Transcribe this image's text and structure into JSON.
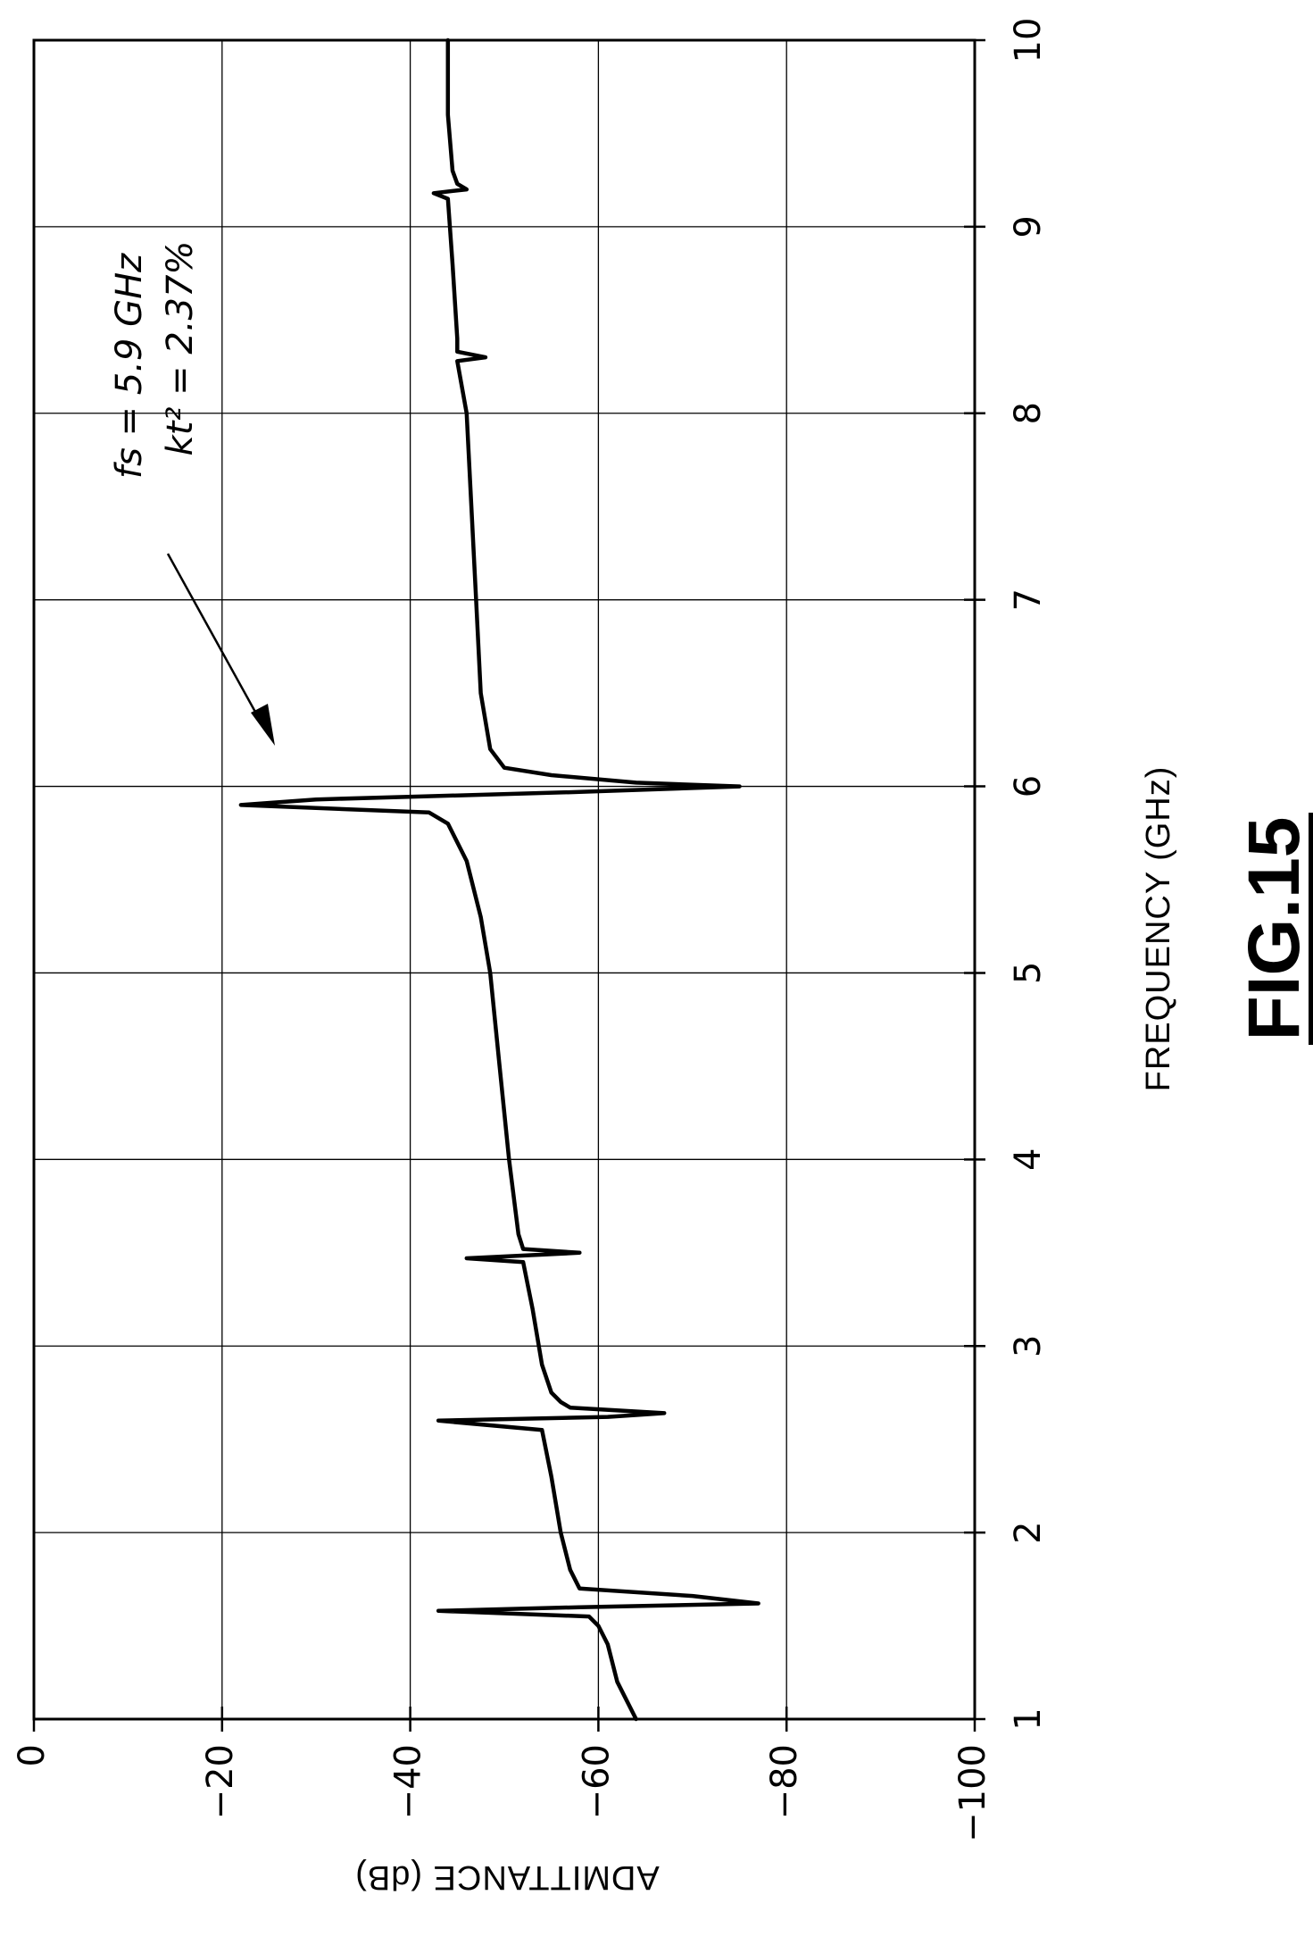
{
  "figure_label": "FIG.15",
  "annotation": {
    "line1": "fs = 5.9 GHz",
    "line2": "kt² = 2.37%"
  },
  "chart_data": {
    "type": "line",
    "title": "",
    "xlabel": "FREQUENCY (GHz)",
    "ylabel": "ADMITTANCE (dB)",
    "xlim": [
      1,
      10
    ],
    "ylim": [
      -100,
      0
    ],
    "x_ticks": [
      1,
      2,
      3,
      4,
      5,
      6,
      7,
      8,
      9,
      10
    ],
    "x_tick_labels": [
      "1",
      "2",
      "3",
      "4",
      "5",
      "6",
      "7",
      "8",
      "9",
      "10"
    ],
    "y_ticks": [
      0,
      -20,
      -40,
      -60,
      -80,
      -100
    ],
    "y_tick_labels": [
      "0",
      "−20",
      "−40",
      "−60",
      "−80",
      "−100"
    ],
    "grid": true,
    "series": [
      {
        "color": "#000000",
        "x": [
          1.0,
          1.2,
          1.4,
          1.5,
          1.55,
          1.58,
          1.6,
          1.62,
          1.66,
          1.7,
          1.8,
          2.0,
          2.3,
          2.55,
          2.6,
          2.62,
          2.64,
          2.67,
          2.7,
          2.75,
          2.9,
          3.2,
          3.45,
          3.47,
          3.5,
          3.52,
          3.6,
          4.0,
          4.5,
          5.0,
          5.3,
          5.6,
          5.8,
          5.86,
          5.9,
          5.93,
          5.97,
          6.0,
          6.02,
          6.06,
          6.1,
          6.2,
          6.5,
          7.0,
          7.5,
          8.0,
          8.28,
          8.3,
          8.33,
          8.4,
          8.8,
          9.15,
          9.18,
          9.2,
          9.23,
          9.3,
          9.6,
          10.0
        ],
        "y": [
          -64,
          -62,
          -61,
          -60,
          -59,
          -43,
          -58,
          -77,
          -70,
          -58,
          -57,
          -56,
          -55,
          -54,
          -43,
          -61,
          -67,
          -57,
          -56,
          -55,
          -54,
          -53,
          -52,
          -46,
          -58,
          -52,
          -51.5,
          -50.5,
          -49.5,
          -48.5,
          -47.5,
          -46,
          -44,
          -42,
          -22,
          -30,
          -58,
          -75,
          -64,
          -55,
          -50,
          -48.5,
          -47.5,
          -47,
          -46.5,
          -46,
          -45,
          -48,
          -45,
          -45,
          -44.5,
          -44,
          -42.5,
          -46,
          -45,
          -44.5,
          -44,
          -44
        ]
      }
    ]
  }
}
